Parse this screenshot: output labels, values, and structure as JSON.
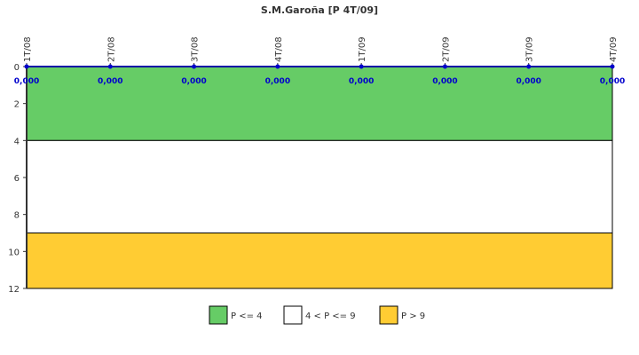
{
  "chart_data": {
    "type": "line",
    "title": "S.M.Garoña [P 4T/09]",
    "categories": [
      "1T/08",
      "2T/08",
      "3T/08",
      "4T/08",
      "1T/09",
      "2T/09",
      "3T/09",
      "4T/09"
    ],
    "series": [
      {
        "values": [
          0,
          0,
          0,
          0,
          0,
          0,
          0,
          0
        ],
        "value_labels": [
          "0,000",
          "0,000",
          "0,000",
          "0,000",
          "0,000",
          "0,000",
          "0,000",
          "0,000"
        ],
        "color": "#0000cc"
      }
    ],
    "y_ticks": [
      "0",
      "2",
      "4",
      "6",
      "8",
      "10",
      "12"
    ],
    "ylim": [
      0,
      12
    ],
    "y_inverted": true,
    "x_axis_position": "top",
    "bands": [
      {
        "from": 0,
        "to": 4,
        "color": "#66cc66",
        "label": "P <= 4"
      },
      {
        "from": 4,
        "to": 9,
        "color": "#ffffff",
        "label": "4 < P <= 9"
      },
      {
        "from": 9,
        "to": 12,
        "color": "#ffcc33",
        "label": "P > 9"
      }
    ],
    "legend_position": "bottom"
  }
}
